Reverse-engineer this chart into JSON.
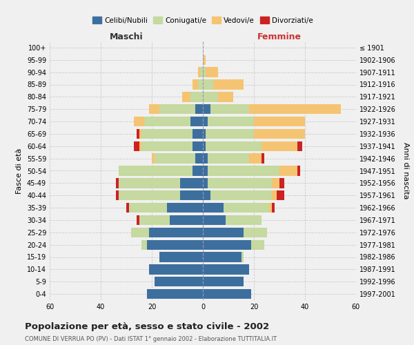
{
  "age_groups": [
    "0-4",
    "5-9",
    "10-14",
    "15-19",
    "20-24",
    "25-29",
    "30-34",
    "35-39",
    "40-44",
    "45-49",
    "50-54",
    "55-59",
    "60-64",
    "65-69",
    "70-74",
    "75-79",
    "80-84",
    "85-89",
    "90-94",
    "95-99",
    "100+"
  ],
  "birth_years": [
    "1997-2001",
    "1992-1996",
    "1987-1991",
    "1982-1986",
    "1977-1981",
    "1972-1976",
    "1967-1971",
    "1962-1966",
    "1957-1961",
    "1952-1956",
    "1947-1951",
    "1942-1946",
    "1937-1941",
    "1932-1936",
    "1927-1931",
    "1922-1926",
    "1917-1921",
    "1912-1916",
    "1907-1911",
    "1902-1906",
    "≤ 1901"
  ],
  "maschi": {
    "celibi": [
      22,
      19,
      21,
      17,
      22,
      21,
      13,
      14,
      9,
      9,
      4,
      3,
      4,
      4,
      5,
      3,
      0,
      0,
      0,
      0,
      0
    ],
    "coniugati": [
      0,
      0,
      0,
      0,
      2,
      7,
      12,
      15,
      24,
      24,
      29,
      16,
      20,
      20,
      18,
      14,
      5,
      2,
      1,
      0,
      0
    ],
    "vedovi": [
      0,
      0,
      0,
      0,
      0,
      0,
      0,
      0,
      0,
      0,
      0,
      1,
      1,
      1,
      4,
      4,
      3,
      2,
      1,
      0,
      0
    ],
    "divorziati": [
      0,
      0,
      0,
      0,
      0,
      0,
      1,
      1,
      1,
      1,
      0,
      0,
      2,
      1,
      0,
      0,
      0,
      0,
      0,
      0,
      0
    ]
  },
  "femmine": {
    "nubili": [
      19,
      16,
      18,
      15,
      19,
      16,
      9,
      8,
      3,
      2,
      2,
      2,
      1,
      1,
      2,
      3,
      0,
      0,
      0,
      0,
      0
    ],
    "coniugate": [
      0,
      0,
      0,
      1,
      5,
      9,
      14,
      18,
      24,
      25,
      28,
      16,
      22,
      19,
      18,
      15,
      6,
      4,
      1,
      0,
      0
    ],
    "vedove": [
      0,
      0,
      0,
      0,
      0,
      0,
      0,
      1,
      2,
      3,
      7,
      5,
      14,
      20,
      20,
      36,
      6,
      12,
      5,
      1,
      0
    ],
    "divorziate": [
      0,
      0,
      0,
      0,
      0,
      0,
      0,
      1,
      3,
      2,
      1,
      1,
      2,
      0,
      0,
      0,
      0,
      0,
      0,
      0,
      0
    ]
  },
  "colors": {
    "celibi_nubili": "#3d6f9e",
    "coniugati": "#c5d9a0",
    "vedovi": "#f5c472",
    "divorziati": "#cc2222"
  },
  "title": "Popolazione per età, sesso e stato civile - 2002",
  "subtitle": "COMUNE DI VERRUA PO (PV) - Dati ISTAT 1° gennaio 2002 - Elaborazione TUTTITALIA.IT",
  "xlabel_left": "Maschi",
  "xlabel_right": "Femmine",
  "ylabel_left": "Fasce di età",
  "ylabel_right": "Anni di nascita",
  "xlim": 60,
  "legend_labels": [
    "Celibi/Nubili",
    "Coniugati/e",
    "Vedovi/e",
    "Divorziati/e"
  ],
  "background_color": "#f0f0f0"
}
